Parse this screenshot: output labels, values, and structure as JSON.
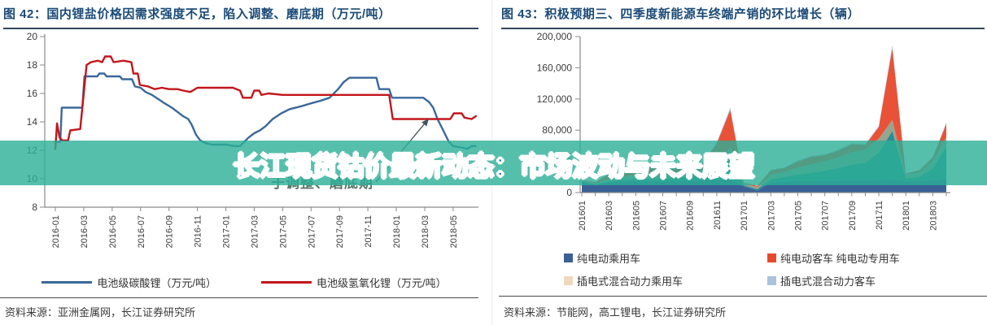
{
  "watermark": {
    "text": "长江现货钴价最新动态：市场波动与未来展望",
    "text_color": "#1d56c8",
    "band_color": "rgba(44,175,151,0.80)"
  },
  "left_panel": {
    "title": "图 42：国内锂盐价格因需求强度不足，陷入调整、磨底期（万元/吨）",
    "source_label": "资料来源：",
    "source": "亚洲金属网，长江证券研究所"
  },
  "right_panel": {
    "title": "图 43：积极预期三、四季度新能源车终端产销的环比增长（辆）",
    "source_label": "资料来源：",
    "source": "节能网，高工锂电，长江证券研究所"
  },
  "chart_data": [
    {
      "type": "line",
      "title": "国内锂盐价格因需求强度不足，陷入调整、磨底期（万元/吨）",
      "ylabel": "万元/吨",
      "ylim": [
        8,
        20
      ],
      "yticks": [
        8,
        10,
        12,
        14,
        16,
        18,
        20
      ],
      "x_unit": "month_index_from_2016-01",
      "tick_labels": [
        "2016-01",
        "2016-03",
        "2016-05",
        "2016-07",
        "2016-09",
        "2016-11",
        "2017-01",
        "2017-03",
        "2017-05",
        "2017-07",
        "2017-09",
        "2017-11",
        "2018-01",
        "2018-03",
        "2018-05"
      ],
      "grid": false,
      "legend_position": "bottom",
      "series": [
        {
          "name": "电池级碳酸锂（万元/吨）",
          "color": "#3A689B",
          "points": [
            [
              0,
              12.6
            ],
            [
              0.35,
              12.6
            ],
            [
              0.45,
              15.0
            ],
            [
              1.9,
              15.0
            ],
            [
              2.05,
              17.2
            ],
            [
              2.95,
              17.2
            ],
            [
              3.1,
              17.4
            ],
            [
              3.45,
              17.4
            ],
            [
              3.6,
              17.2
            ],
            [
              4.55,
              17.2
            ],
            [
              4.7,
              17.0
            ],
            [
              5.4,
              17.0
            ],
            [
              5.6,
              16.5
            ],
            [
              6.0,
              16.4
            ],
            [
              6.35,
              16.1
            ],
            [
              6.8,
              15.9
            ],
            [
              7.25,
              15.6
            ],
            [
              7.7,
              15.3
            ],
            [
              8.2,
              15.0
            ],
            [
              8.6,
              14.7
            ],
            [
              9.0,
              14.4
            ],
            [
              9.35,
              14.2
            ],
            [
              9.6,
              13.8
            ],
            [
              9.9,
              13.1
            ],
            [
              10.2,
              12.7
            ],
            [
              10.6,
              12.5
            ],
            [
              11.0,
              12.4
            ],
            [
              12.0,
              12.4
            ],
            [
              12.6,
              12.3
            ],
            [
              13.0,
              12.3
            ],
            [
              13.3,
              12.6
            ],
            [
              13.6,
              12.9
            ],
            [
              14.0,
              13.2
            ],
            [
              14.4,
              13.4
            ],
            [
              14.8,
              13.7
            ],
            [
              15.3,
              14.2
            ],
            [
              15.9,
              14.6
            ],
            [
              16.5,
              14.9
            ],
            [
              17.3,
              15.1
            ],
            [
              18.0,
              15.3
            ],
            [
              18.7,
              15.5
            ],
            [
              19.3,
              15.7
            ],
            [
              19.9,
              16.3
            ],
            [
              20.3,
              16.8
            ],
            [
              20.7,
              17.1
            ],
            [
              22.6,
              17.1
            ],
            [
              22.8,
              16.3
            ],
            [
              23.5,
              16.3
            ],
            [
              23.7,
              15.7
            ],
            [
              25.9,
              15.7
            ],
            [
              26.3,
              15.4
            ],
            [
              26.6,
              15.0
            ],
            [
              26.9,
              14.2
            ],
            [
              27.3,
              13.4
            ],
            [
              27.7,
              12.6
            ],
            [
              28.0,
              12.3
            ],
            [
              28.6,
              12.2
            ],
            [
              29.0,
              12.1
            ],
            [
              29.3,
              12.3
            ],
            [
              29.6,
              12.3
            ]
          ]
        },
        {
          "name": "电池级氢氧化锂（万元/吨）",
          "color": "#C2161B",
          "points": [
            [
              0,
              12.1
            ],
            [
              0.12,
              13.9
            ],
            [
              0.3,
              12.9
            ],
            [
              0.5,
              12.7
            ],
            [
              0.9,
              12.7
            ],
            [
              1.05,
              13.4
            ],
            [
              1.75,
              13.5
            ],
            [
              2.2,
              18.0
            ],
            [
              2.5,
              18.2
            ],
            [
              3.0,
              18.3
            ],
            [
              3.3,
              18.2
            ],
            [
              3.5,
              18.6
            ],
            [
              3.9,
              18.6
            ],
            [
              4.1,
              18.2
            ],
            [
              4.8,
              18.3
            ],
            [
              5.35,
              18.2
            ],
            [
              5.5,
              17.4
            ],
            [
              5.8,
              17.4
            ],
            [
              5.95,
              16.6
            ],
            [
              6.5,
              16.5
            ],
            [
              7.0,
              16.3
            ],
            [
              7.5,
              16.4
            ],
            [
              8.0,
              16.3
            ],
            [
              8.6,
              16.3
            ],
            [
              9.0,
              16.2
            ],
            [
              9.5,
              16.1
            ],
            [
              10.0,
              16.4
            ],
            [
              11.0,
              16.4
            ],
            [
              12.5,
              16.4
            ],
            [
              13.0,
              16.2
            ],
            [
              13.2,
              15.7
            ],
            [
              13.8,
              15.7
            ],
            [
              14.0,
              16.2
            ],
            [
              14.35,
              16.2
            ],
            [
              14.5,
              15.9
            ],
            [
              15.0,
              16.0
            ],
            [
              16.0,
              15.9
            ],
            [
              18.0,
              15.9
            ],
            [
              20.0,
              15.9
            ],
            [
              22.0,
              15.9
            ],
            [
              23.0,
              15.9
            ],
            [
              23.5,
              15.9
            ],
            [
              23.75,
              14.2
            ],
            [
              25.0,
              14.2
            ],
            [
              26.0,
              14.2
            ],
            [
              27.0,
              14.2
            ],
            [
              27.8,
              14.2
            ],
            [
              28.05,
              14.6
            ],
            [
              28.6,
              14.6
            ],
            [
              28.8,
              14.3
            ],
            [
              29.3,
              14.2
            ],
            [
              29.6,
              14.4
            ]
          ]
        }
      ],
      "annotation": {
        "text": "于调整、磨底期",
        "arrow_from": [
          462,
          224
        ],
        "arrow_to": [
          527,
          146
        ]
      }
    },
    {
      "type": "area",
      "title": "积极预期三、四季度新能源车终端产销的环比增长（辆）",
      "ylabel": "辆",
      "ylim": [
        0,
        200000
      ],
      "yticks": [
        0,
        40000,
        80000,
        120000,
        160000,
        200000
      ],
      "grid": false,
      "legend_position": "bottom",
      "categories": [
        "201601",
        "201602",
        "201603",
        "201604",
        "201605",
        "201606",
        "201607",
        "201608",
        "201609",
        "201610",
        "201611",
        "201612",
        "201701",
        "201702",
        "201703",
        "201704",
        "201705",
        "201706",
        "201707",
        "201708",
        "201709",
        "201710",
        "201711",
        "201712",
        "201801",
        "201802",
        "201803",
        "201804"
      ],
      "tick_labels": [
        "201601",
        "201603",
        "201605",
        "201607",
        "201609",
        "201611",
        "201701",
        "201703",
        "201705",
        "201707",
        "201709",
        "201711",
        "201801",
        "201803"
      ],
      "stack_order_note": "drawn bottom to top",
      "series": [
        {
          "name": "纯电动乘用车",
          "color": "#3A6096",
          "opacity": 1,
          "values": [
            14000,
            10000,
            13000,
            14000,
            15000,
            15000,
            14000,
            15000,
            15500,
            15500,
            16000,
            17000,
            8000,
            2500,
            13000,
            14000,
            15000,
            15000,
            15000,
            15500,
            16000,
            16000,
            16000,
            17000,
            15000,
            15000,
            16000,
            17000
          ]
        },
        {
          "name": "纯电动专用车",
          "color": "#1E858D",
          "opacity": 0.95,
          "values": [
            500,
            500,
            1500,
            2000,
            2500,
            3000,
            3500,
            4000,
            5000,
            7000,
            12000,
            30000,
            1500,
            2000,
            4000,
            6000,
            8000,
            10000,
            13000,
            16000,
            20000,
            22000,
            35000,
            62000,
            3000,
            5000,
            15000,
            42000
          ]
        },
        {
          "name": "插电式混合动力乘用车",
          "color": "#87997F",
          "legend_color": "#EFD9BE",
          "opacity": 0.88,
          "values": [
            1000,
            1200,
            3000,
            4000,
            5000,
            5500,
            5000,
            5500,
            6500,
            7000,
            9000,
            11000,
            2000,
            2500,
            5500,
            6500,
            9000,
            11000,
            12000,
            13500,
            16000,
            17000,
            18000,
            14000,
            5000,
            6000,
            9000,
            12000
          ]
        },
        {
          "name": "纯电动客车",
          "color": "#E8492C",
          "opacity": 0.95,
          "values": [
            500,
            1500,
            6000,
            6500,
            7500,
            9500,
            6500,
            6500,
            8500,
            8500,
            26000,
            48000,
            1200,
            1500,
            6000,
            5000,
            8000,
            10000,
            8000,
            9000,
            10000,
            6000,
            15000,
            92000,
            1500,
            2500,
            5000,
            17000
          ]
        },
        {
          "name": "插电式混合动力客车",
          "color": "#A9C2DE",
          "opacity": 0.9,
          "values": [
            200,
            300,
            500,
            500,
            700,
            800,
            600,
            600,
            800,
            900,
            1500,
            3000,
            300,
            300,
            700,
            800,
            1000,
            1200,
            1100,
            1200,
            1300,
            1200,
            1500,
            4000,
            400,
            500,
            1000,
            2000
          ]
        }
      ],
      "legend_display": [
        {
          "swatch": "#3A6096",
          "label": "纯电动乘用车"
        },
        {
          "swatch": "#E8492C",
          "label": "纯电动客车 纯电动专用车"
        },
        {
          "swatch": "#EFD9BE",
          "label": "插电式混合动力乘用车"
        },
        {
          "swatch": "#A9C2DE",
          "label": "插电式混合动力客车"
        }
      ]
    }
  ]
}
